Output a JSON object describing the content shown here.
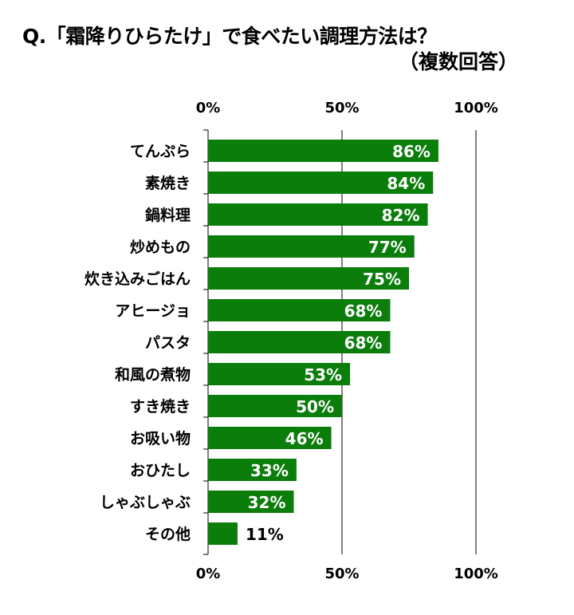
{
  "title": "Q.「霜降りひらたけ」で食べたい調理方法は？",
  "subtitle": "（複数回答）",
  "chart_data": {
    "type": "bar",
    "orientation": "horizontal",
    "categories": [
      "てんぷら",
      "素焼き",
      "鍋料理",
      "炒めもの",
      "炊き込みごはん",
      "アヒージョ",
      "パスタ",
      "和風の煮物",
      "すき焼き",
      "お吸い物",
      "おひたし",
      "しゃぶしゃぶ",
      "その他"
    ],
    "values": [
      86,
      84,
      82,
      77,
      75,
      68,
      68,
      53,
      50,
      46,
      33,
      32,
      11
    ],
    "data_labels": [
      "86%",
      "84%",
      "82%",
      "77%",
      "75%",
      "68%",
      "68%",
      "53%",
      "50%",
      "46%",
      "33%",
      "32%",
      "11%"
    ],
    "xlim": [
      0,
      100
    ],
    "tick_labels": [
      "0%",
      "50%",
      "100%"
    ],
    "ticks": [
      0,
      50,
      100
    ],
    "axis_labels_position": "top and bottom",
    "bar_color": "#0a7d0a",
    "label_color_inside": "#ffffff",
    "label_color_outside": "#000000",
    "grid": true
  }
}
